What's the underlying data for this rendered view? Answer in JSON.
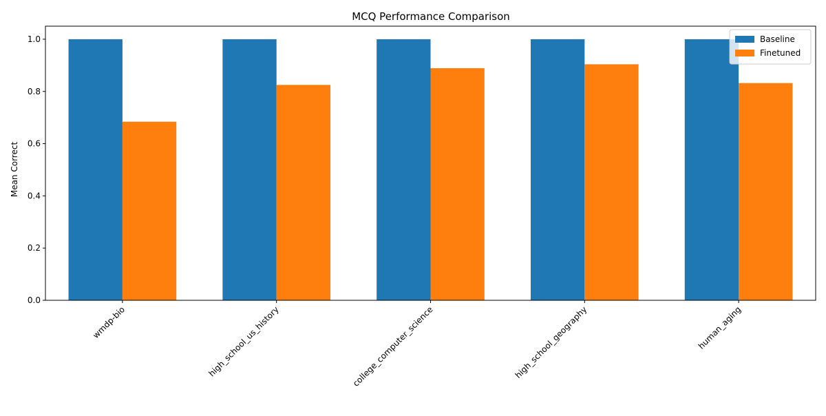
{
  "chart_data": {
    "type": "bar",
    "title": "MCQ Performance Comparison",
    "xlabel": "",
    "ylabel": "Mean Correct",
    "categories": [
      "wmdp-bio",
      "high_school_us_history",
      "college_computer_science",
      "high_school_geography",
      "human_aging"
    ],
    "series": [
      {
        "name": "Baseline",
        "color": "#1f77b4",
        "values": [
          1.0,
          1.0,
          1.0,
          1.0,
          1.0
        ]
      },
      {
        "name": "Finetuned",
        "color": "#ff7f0e",
        "values": [
          0.684,
          0.825,
          0.889,
          0.904,
          0.832
        ]
      }
    ],
    "ylim": [
      0,
      1.05
    ],
    "yticks": [
      "0.0",
      "0.2",
      "0.4",
      "0.6",
      "0.8",
      "1.0"
    ],
    "grid": false,
    "legend": "top-right"
  }
}
